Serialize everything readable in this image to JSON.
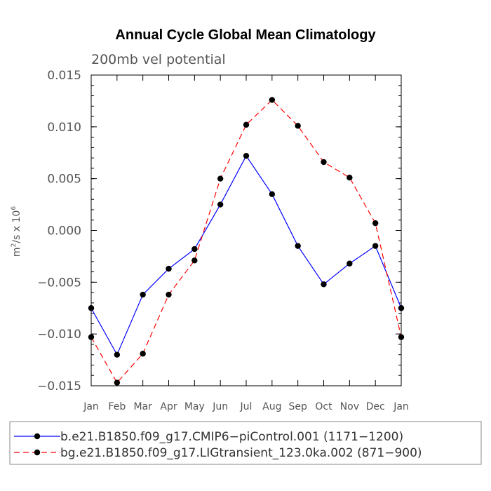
{
  "chart_data": {
    "type": "line",
    "title": "Annual Cycle Global Mean Climatology",
    "subtitle": "200mb vel potential",
    "xlabel": "",
    "ylabel": "m²/s x 10⁶",
    "ylabel_base": "m",
    "ylabel_sup1": "2",
    "ylabel_mid": "/s x 10",
    "ylabel_sup2": "6",
    "ylim": [
      -0.015,
      0.015
    ],
    "yticks": [
      0.015,
      0.01,
      0.005,
      0.0,
      -0.005,
      -0.01,
      -0.015
    ],
    "ytick_labels": [
      "0.015",
      "0.010",
      "0.005",
      "0.000",
      "−0.005",
      "−0.010",
      "−0.015"
    ],
    "categories": [
      "Jan",
      "Feb",
      "Mar",
      "Apr",
      "May",
      "Jun",
      "Jul",
      "Aug",
      "Sep",
      "Oct",
      "Nov",
      "Dec",
      "Jan"
    ],
    "series": [
      {
        "name": "b.e21.B1850.f09_g17.CMIP6−piControl.001 (1171−1200)",
        "color": "#0000ff",
        "dash": "solid",
        "values": [
          -0.0075,
          -0.012,
          -0.0062,
          -0.0037,
          -0.0018,
          0.0025,
          0.0072,
          0.0035,
          -0.0015,
          -0.0052,
          -0.0032,
          -0.0015,
          -0.0075
        ]
      },
      {
        "name": "bg.e21.B1850.f09_g17.LIGtransient_123.0ka.002 (871−900)",
        "color": "#ff0000",
        "dash": "dashed",
        "values": [
          -0.0103,
          -0.0147,
          -0.0119,
          -0.0062,
          -0.0029,
          0.005,
          0.0102,
          0.0126,
          0.0101,
          0.0066,
          0.0051,
          0.0007,
          -0.0103
        ]
      }
    ],
    "legend_position": "bottom"
  }
}
